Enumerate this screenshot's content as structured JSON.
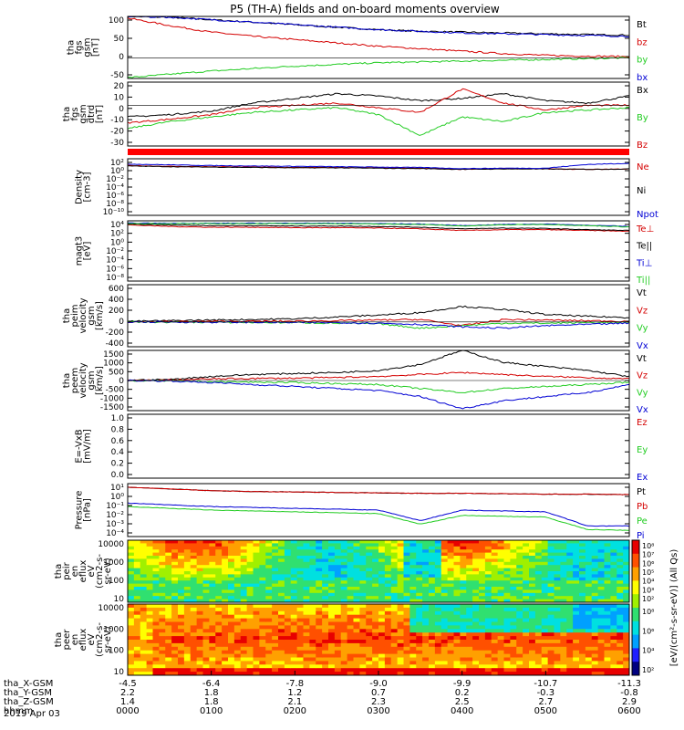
{
  "title": "P5 (TH-A) fields and on-board moments overview",
  "date_label": "2019 Apr 03",
  "colors": {
    "black": "#000000",
    "red": "#d40000",
    "green": "#22cc22",
    "blue": "#0000d4",
    "bar_red": "#ff0000"
  },
  "chart_data": [
    {
      "type": "line",
      "id": "fgs_gsm",
      "ylabel": [
        "tha",
        "fgs",
        "gsm",
        "[nT]"
      ],
      "ylim": [
        -50,
        100
      ],
      "yticks": [
        "100",
        "50",
        "0",
        "-50"
      ],
      "series": [
        {
          "name": "Bt",
          "color": "#000000",
          "values": [
            100,
            98,
            92,
            86,
            80,
            74,
            68,
            64,
            62,
            60,
            58,
            56,
            55
          ]
        },
        {
          "name": "bz",
          "color": "#d40000",
          "values": [
            96,
            78,
            62,
            52,
            44,
            36,
            28,
            22,
            16,
            10,
            6,
            4,
            3
          ]
        },
        {
          "name": "by",
          "color": "#22cc22",
          "values": [
            -48,
            -40,
            -32,
            -26,
            -20,
            -16,
            -12,
            -10,
            -8,
            -6,
            -4,
            -2,
            0
          ]
        },
        {
          "name": "bx",
          "color": "#0000d4",
          "values": [
            100,
            98,
            92,
            86,
            80,
            74,
            68,
            64,
            60,
            58,
            56,
            54,
            52
          ]
        }
      ]
    },
    {
      "type": "line",
      "id": "fgs_gsm_detrend",
      "ylabel": [
        "tha",
        "fgs",
        "gsm",
        "dtrd",
        "[nT]"
      ],
      "ylim": [
        -35,
        20
      ],
      "yticks": [
        "20",
        "10",
        "0",
        "-10",
        "-20",
        "-30"
      ],
      "series": [
        {
          "name": "Bx",
          "color": "#000000",
          "values": [
            -10,
            -8,
            -5,
            2,
            6,
            10,
            8,
            4,
            6,
            10,
            4,
            2,
            8
          ]
        },
        {
          "name": "By",
          "color": "#22cc22",
          "values": [
            -20,
            -14,
            -10,
            -6,
            -4,
            -2,
            -8,
            -26,
            -10,
            -14,
            -6,
            -4,
            -2
          ]
        },
        {
          "name": "Bz",
          "color": "#d40000",
          "values": [
            -15,
            -12,
            -8,
            -2,
            0,
            2,
            -2,
            -6,
            14,
            2,
            -4,
            0,
            0
          ]
        }
      ]
    },
    {
      "type": "line",
      "id": "density",
      "ylabel": [
        "Density",
        "[cm-3]"
      ],
      "ylim_log10": [
        -12,
        3
      ],
      "yticks": [
        "10²",
        "10⁰",
        "10⁻²",
        "10⁻⁴",
        "10⁻⁶",
        "10⁻⁸",
        "10⁻¹⁰"
      ],
      "series": [
        {
          "name": "Ne",
          "color": "#d40000",
          "values": [
            1.2,
            1.0,
            0.9,
            0.8,
            0.7,
            0.7,
            0.6,
            0.5,
            0.2,
            0.4,
            0.3,
            0.2,
            0.3
          ]
        },
        {
          "name": "Ni",
          "color": "#000000",
          "values": [
            1.1,
            0.9,
            0.8,
            0.7,
            0.6,
            0.6,
            0.5,
            0.4,
            0.2,
            0.3,
            0.3,
            0.2,
            0.3
          ]
        },
        {
          "name": "Npot",
          "color": "#0000d4",
          "values": [
            1.6,
            1.4,
            1.2,
            1.1,
            1.0,
            0.9,
            0.8,
            0.7,
            0.4,
            0.5,
            0.5,
            1.5,
            1.8
          ]
        }
      ]
    },
    {
      "type": "line",
      "id": "magt3",
      "ylabel": [
        "magt3",
        "[eV]"
      ],
      "ylim_log10": [
        -10,
        5
      ],
      "yticks": [
        "10⁴",
        "10²",
        "10⁰",
        "10⁻²",
        "10⁻⁴",
        "10⁻⁶",
        "10⁻⁸"
      ],
      "series": [
        {
          "name": "Te⊥",
          "color": "#d40000",
          "values": [
            4.0,
            3.6,
            3.4,
            3.4,
            3.3,
            3.3,
            3.2,
            3.0,
            2.6,
            2.8,
            2.8,
            2.6,
            2.4
          ]
        },
        {
          "name": "Te||",
          "color": "#000000",
          "values": [
            4.2,
            4.0,
            3.8,
            3.8,
            3.7,
            3.7,
            3.6,
            3.4,
            3.0,
            3.2,
            3.1,
            2.8,
            2.6
          ]
        },
        {
          "name": "Ti⊥",
          "color": "#0000d4",
          "values": [
            4.4,
            4.4,
            4.4,
            4.4,
            4.4,
            4.4,
            4.3,
            4.2,
            3.8,
            4.1,
            4.2,
            3.9,
            3.6
          ]
        },
        {
          "name": "Ti||",
          "color": "#22cc22",
          "values": [
            4.3,
            4.3,
            4.3,
            4.3,
            4.3,
            4.3,
            4.2,
            4.1,
            3.7,
            4.0,
            4.1,
            3.8,
            3.5
          ]
        }
      ]
    },
    {
      "type": "line",
      "id": "peim_velocity",
      "ylabel": [
        "tha",
        "peim",
        "velocity",
        "gsm",
        "[km/s]"
      ],
      "ylim": [
        -400,
        600
      ],
      "yticks": [
        "600",
        "400",
        "200",
        "0",
        "-200",
        "-400"
      ],
      "series": [
        {
          "name": "Vt",
          "color": "#000000",
          "values": [
            10,
            20,
            30,
            40,
            50,
            80,
            110,
            150,
            250,
            200,
            120,
            90,
            70
          ]
        },
        {
          "name": "Vz",
          "color": "#d40000",
          "values": [
            0,
            5,
            8,
            10,
            12,
            20,
            30,
            40,
            -60,
            40,
            30,
            20,
            10
          ]
        },
        {
          "name": "Vy",
          "color": "#22cc22",
          "values": [
            0,
            -5,
            -5,
            -10,
            -10,
            -20,
            -30,
            -100,
            -60,
            -20,
            -20,
            -10,
            -10
          ]
        },
        {
          "name": "Vx",
          "color": "#0000d4",
          "values": [
            0,
            0,
            -5,
            -5,
            -10,
            -10,
            -20,
            -40,
            -80,
            -100,
            -60,
            -40,
            -20
          ]
        }
      ]
    },
    {
      "type": "line",
      "id": "peem_velocity",
      "ylabel": [
        "tha",
        "peem",
        "velocity",
        "gsm",
        "[km/s]"
      ],
      "ylim": [
        -1500,
        1500
      ],
      "yticks": [
        "1500",
        "1000",
        "500",
        "0",
        "-500",
        "-1000",
        "-1500"
      ],
      "series": [
        {
          "name": "Vt",
          "color": "#000000",
          "values": [
            10,
            50,
            200,
            300,
            350,
            400,
            500,
            800,
            1500,
            900,
            700,
            500,
            200
          ]
        },
        {
          "name": "Vz",
          "color": "#d40000",
          "values": [
            0,
            20,
            80,
            100,
            120,
            150,
            200,
            300,
            400,
            300,
            200,
            150,
            80
          ]
        },
        {
          "name": "Vy",
          "color": "#22cc22",
          "values": [
            0,
            -20,
            -60,
            -80,
            -100,
            -150,
            -200,
            -400,
            -600,
            -400,
            -300,
            -200,
            -80
          ]
        },
        {
          "name": "Vx",
          "color": "#0000d4",
          "values": [
            0,
            -20,
            -100,
            -200,
            -300,
            -400,
            -500,
            -800,
            -1400,
            -1000,
            -800,
            -600,
            -200
          ]
        }
      ]
    },
    {
      "type": "line",
      "id": "e_vxb",
      "ylabel": [
        "E=-VxB",
        "[mV/m]"
      ],
      "ylim": [
        0,
        1
      ],
      "yticks": [
        "1.0",
        "0.8",
        "0.6",
        "0.4",
        "0.2",
        "0.0"
      ],
      "series": [
        {
          "name": "Ez",
          "color": "#d40000",
          "values": []
        },
        {
          "name": "Ey",
          "color": "#22cc22",
          "values": []
        },
        {
          "name": "Ex",
          "color": "#0000d4",
          "values": []
        }
      ]
    },
    {
      "type": "line",
      "id": "pressure",
      "ylabel": [
        "Pressure",
        "[nPa]"
      ],
      "ylim_log10": [
        -5,
        1
      ],
      "yticks": [
        "10¹",
        "10⁰",
        "10⁻¹",
        "10⁻²",
        "10⁻³",
        "10⁻⁴"
      ],
      "series": [
        {
          "name": "Pt",
          "color": "#000000",
          "values": [
            0.6,
            0.4,
            0.2,
            0.1,
            0.05,
            0.0,
            -0.05,
            -0.1,
            -0.1,
            -0.15,
            -0.2,
            -0.2,
            -0.25
          ]
        },
        {
          "name": "Pb",
          "color": "#d40000",
          "values": [
            0.6,
            0.4,
            0.2,
            0.1,
            0.05,
            0.0,
            -0.05,
            -0.1,
            -0.1,
            -0.15,
            -0.2,
            -0.2,
            -0.25
          ]
        },
        {
          "name": "Pe",
          "color": "#22cc22",
          "values": [
            -1.6,
            -1.8,
            -2.0,
            -2.1,
            -2.2,
            -2.3,
            -2.4,
            -3.6,
            -2.6,
            -2.7,
            -2.8,
            -4.2,
            -4.3
          ]
        },
        {
          "name": "Pi",
          "color": "#0000d4",
          "values": [
            -1.2,
            -1.4,
            -1.6,
            -1.7,
            -1.8,
            -1.9,
            -2.0,
            -3.2,
            -2.0,
            -2.1,
            -2.2,
            -3.8,
            -3.8
          ]
        }
      ]
    },
    {
      "type": "heatmap",
      "id": "peir_en_eflux",
      "ylabel": [
        "tha",
        "peir",
        "en",
        "eflux",
        "eV",
        "(cm2-s-",
        "sr-eV)"
      ],
      "ylim_log10": [
        0.7,
        4.3
      ],
      "yticks": [
        "10000",
        "1000",
        "100",
        "10"
      ],
      "zlim_log10": [
        2,
        8
      ]
    },
    {
      "type": "heatmap",
      "id": "peer_en_eflux",
      "ylabel": [
        "tha",
        "peer",
        "en",
        "eflux",
        "eV",
        "(cm2-s-",
        "sr-eV)"
      ],
      "ylim_log10": [
        0.7,
        4.3
      ],
      "yticks": [
        "10000",
        "1000",
        "100",
        "10"
      ],
      "zlim_log10": [
        2,
        8
      ]
    }
  ],
  "colorbar": {
    "label": "[eV/(cm²-s-sr-eV)] (All Qs)",
    "ticks_top": [
      "10⁸",
      "10⁷",
      "10⁶",
      "10⁵",
      "10⁴",
      "10³",
      "10²"
    ],
    "ticks_bottom": [
      "10⁸",
      "10⁶",
      "10⁴",
      "10²"
    ]
  },
  "x_axis": {
    "row_labels": [
      "tha_X-GSM",
      "tha_Y-GSM",
      "tha_Z-GSM",
      "hhmm"
    ],
    "columns": [
      [
        "-4.5",
        "2.2",
        "1.4",
        "0000"
      ],
      [
        "-6.4",
        "1.8",
        "1.8",
        "0100"
      ],
      [
        "-7.8",
        "1.2",
        "2.1",
        "0200"
      ],
      [
        "-9.0",
        "0.7",
        "2.3",
        "0300"
      ],
      [
        "-9.9",
        "0.2",
        "2.5",
        "0400"
      ],
      [
        "-10.7",
        "-0.3",
        "2.7",
        "0500"
      ],
      [
        "-11.3",
        "-0.8",
        "2.9",
        "0600"
      ]
    ]
  }
}
